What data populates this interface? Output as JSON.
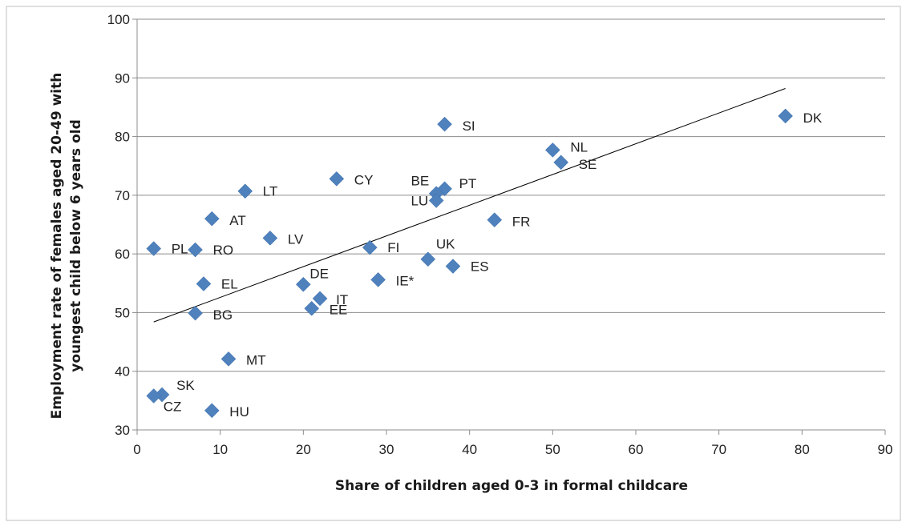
{
  "chart_data": {
    "type": "scatter",
    "xlabel": "Share of children aged 0-3 in formal childcare",
    "ylabel_line1": "Employment rate of females aged 20-49 with",
    "ylabel_line2": "youngest child below 6 years old",
    "xlim": [
      0,
      90
    ],
    "ylim": [
      30,
      100
    ],
    "x_ticks": [
      0,
      10,
      20,
      30,
      40,
      50,
      60,
      70,
      80,
      90
    ],
    "y_ticks": [
      30,
      40,
      50,
      60,
      70,
      80,
      90,
      100
    ],
    "grid": "horizontal",
    "marker": "diamond",
    "marker_color": "#4f81bd",
    "trendline": {
      "x": [
        2,
        78
      ],
      "y": [
        48.4,
        88.2
      ],
      "color": "#000000"
    },
    "points": [
      {
        "label": "DK",
        "x": 78,
        "y": 83.5
      },
      {
        "label": "SI",
        "x": 37,
        "y": 82.1
      },
      {
        "label": "NL",
        "x": 50,
        "y": 77.7
      },
      {
        "label": "SE",
        "x": 51,
        "y": 75.6
      },
      {
        "label": "CY",
        "x": 24,
        "y": 72.8
      },
      {
        "label": "PT",
        "x": 37,
        "y": 71.1
      },
      {
        "label": "BE",
        "x": 36,
        "y": 70.3
      },
      {
        "label": "LU",
        "x": 36,
        "y": 69.1
      },
      {
        "label": "LT",
        "x": 13,
        "y": 70.7
      },
      {
        "label": "AT",
        "x": 9,
        "y": 66.0
      },
      {
        "label": "FR",
        "x": 43,
        "y": 65.8
      },
      {
        "label": "LV",
        "x": 16,
        "y": 62.7
      },
      {
        "label": "FI",
        "x": 28,
        "y": 61.1
      },
      {
        "label": "PL",
        "x": 2,
        "y": 60.9
      },
      {
        "label": "RO",
        "x": 7,
        "y": 60.7
      },
      {
        "label": "UK",
        "x": 35,
        "y": 59.1
      },
      {
        "label": "ES",
        "x": 38,
        "y": 57.9
      },
      {
        "label": "IE*",
        "x": 29,
        "y": 55.6
      },
      {
        "label": "EL",
        "x": 8,
        "y": 54.9
      },
      {
        "label": "DE",
        "x": 20,
        "y": 54.8
      },
      {
        "label": "IT",
        "x": 22,
        "y": 52.4
      },
      {
        "label": "EE",
        "x": 21,
        "y": 50.7
      },
      {
        "label": "BG",
        "x": 7,
        "y": 49.9
      },
      {
        "label": "MT",
        "x": 11,
        "y": 42.1
      },
      {
        "label": "SK",
        "x": 3,
        "y": 36.0
      },
      {
        "label": "CZ",
        "x": 2,
        "y": 35.8
      },
      {
        "label": "HU",
        "x": 9,
        "y": 33.3
      }
    ]
  }
}
